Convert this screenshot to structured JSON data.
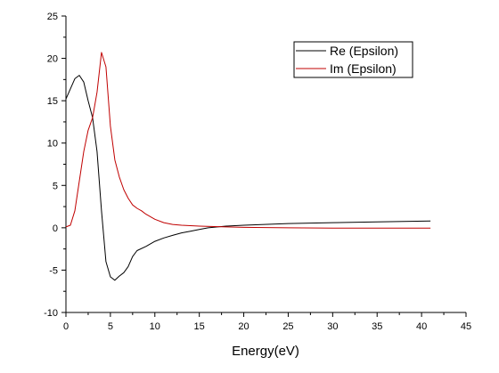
{
  "chart_data": {
    "type": "line",
    "title": "",
    "xlabel": "Energy(eV)",
    "ylabel": "",
    "xlim": [
      0,
      45
    ],
    "ylim": [
      -10,
      25
    ],
    "xticks": [
      0,
      5,
      10,
      15,
      20,
      25,
      30,
      35,
      40,
      45
    ],
    "yticks": [
      -10,
      -5,
      0,
      5,
      10,
      15,
      20,
      25
    ],
    "grid": false,
    "legend_position": "top-right",
    "series": [
      {
        "name": "Re (Epsilon)",
        "color": "#000000",
        "x": [
          0,
          0.5,
          1,
          1.5,
          2,
          2.5,
          3,
          3.5,
          4,
          4.5,
          5,
          5.5,
          6,
          6.5,
          7,
          7.5,
          8,
          9,
          10,
          11,
          12,
          13,
          14,
          15,
          16,
          18,
          20,
          25,
          30,
          35,
          41
        ],
        "y": [
          15.2,
          16.4,
          17.6,
          18.0,
          17.2,
          15.0,
          13.0,
          9.0,
          2.0,
          -4.0,
          -5.8,
          -6.2,
          -5.7,
          -5.3,
          -4.6,
          -3.4,
          -2.7,
          -2.2,
          -1.6,
          -1.2,
          -0.9,
          -0.6,
          -0.4,
          -0.2,
          0.0,
          0.2,
          0.3,
          0.5,
          0.6,
          0.7,
          0.8
        ]
      },
      {
        "name": "Im (Epsilon)",
        "color": "#c00000",
        "x": [
          0,
          0.5,
          1,
          1.5,
          2,
          2.5,
          3,
          3.5,
          4,
          4.5,
          5,
          5.5,
          6,
          6.5,
          7,
          7.5,
          8,
          8.5,
          9,
          10,
          11,
          12,
          13,
          15,
          18,
          20,
          25,
          30,
          35,
          41
        ],
        "y": [
          0.1,
          0.3,
          2.0,
          5.5,
          9.0,
          11.5,
          13.0,
          16.0,
          20.7,
          19.0,
          12.0,
          8.0,
          6.0,
          4.5,
          3.5,
          2.7,
          2.3,
          2.0,
          1.6,
          1.0,
          0.6,
          0.4,
          0.3,
          0.2,
          0.1,
          0.05,
          0.0,
          -0.05,
          -0.05,
          -0.05
        ]
      }
    ]
  }
}
